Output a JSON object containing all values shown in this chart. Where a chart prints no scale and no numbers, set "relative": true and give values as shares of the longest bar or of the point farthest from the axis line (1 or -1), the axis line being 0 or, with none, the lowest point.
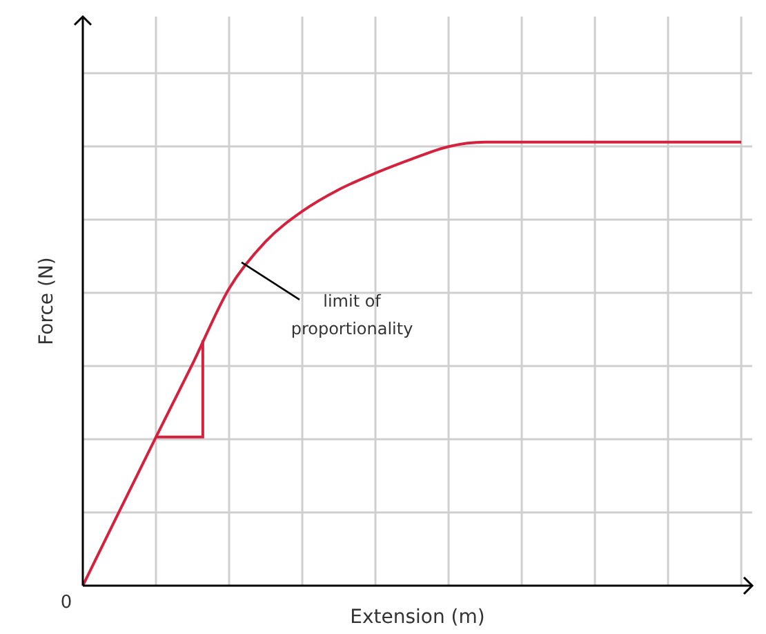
{
  "chart_data": {
    "type": "line",
    "relative": true,
    "xlabel": "Extension (m)",
    "ylabel": "Force (N)",
    "categories": [
      null,
      null,
      null,
      null,
      null,
      null,
      null,
      null,
      null,
      null,
      null,
      null,
      null,
      null,
      null,
      null,
      null,
      null,
      null
    ],
    "series": [
      {
        "color": "#d4213d",
        "values": [
          0,
          0.168,
          0.335,
          0.5,
          0.67,
          0.776,
          0.844,
          0.893,
          0.93,
          0.962,
          0.99,
          1,
          1,
          1,
          1,
          1,
          1,
          1,
          1
        ]
      }
    ],
    "annotations": [
      "0",
      "limit of proportionality"
    ],
    "grid": true,
    "marker": "none",
    "line_style": "solid"
  }
}
